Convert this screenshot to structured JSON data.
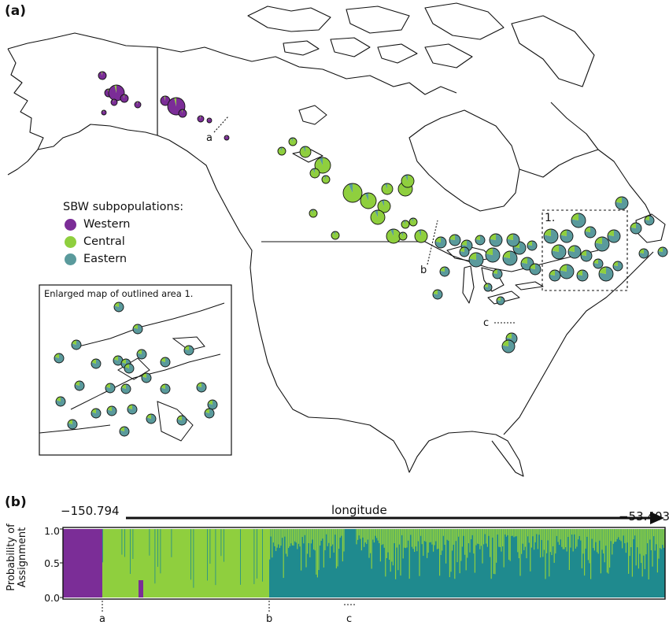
{
  "panel_a_label": "(a)",
  "panel_b_label": "(b)",
  "legend": {
    "title": "SBW subpopulations:",
    "items": [
      {
        "label": "Western",
        "color": "#7b2d97"
      },
      {
        "label": "Central",
        "color": "#8fcf3e"
      },
      {
        "label": "Eastern",
        "color": "#5a9a9c"
      }
    ]
  },
  "inset": {
    "caption": "Enlarged map of outlined area 1.",
    "area_label": "1."
  },
  "map_markers": {
    "a": "a",
    "b": "b",
    "c": "c"
  },
  "structure_plot": {
    "axis_title": "longitude",
    "longitude_min": "−150.794",
    "longitude_max": "−53.403",
    "ylabel": "Probability of Assignment",
    "yticks": [
      "1.0",
      "0.5",
      "0.0"
    ],
    "breaks": {
      "a": "a",
      "b": "b",
      "c": "c"
    },
    "colors": {
      "western": "#7b2d97",
      "central": "#8fcf3e",
      "eastern": "#1f8a8e"
    }
  }
}
